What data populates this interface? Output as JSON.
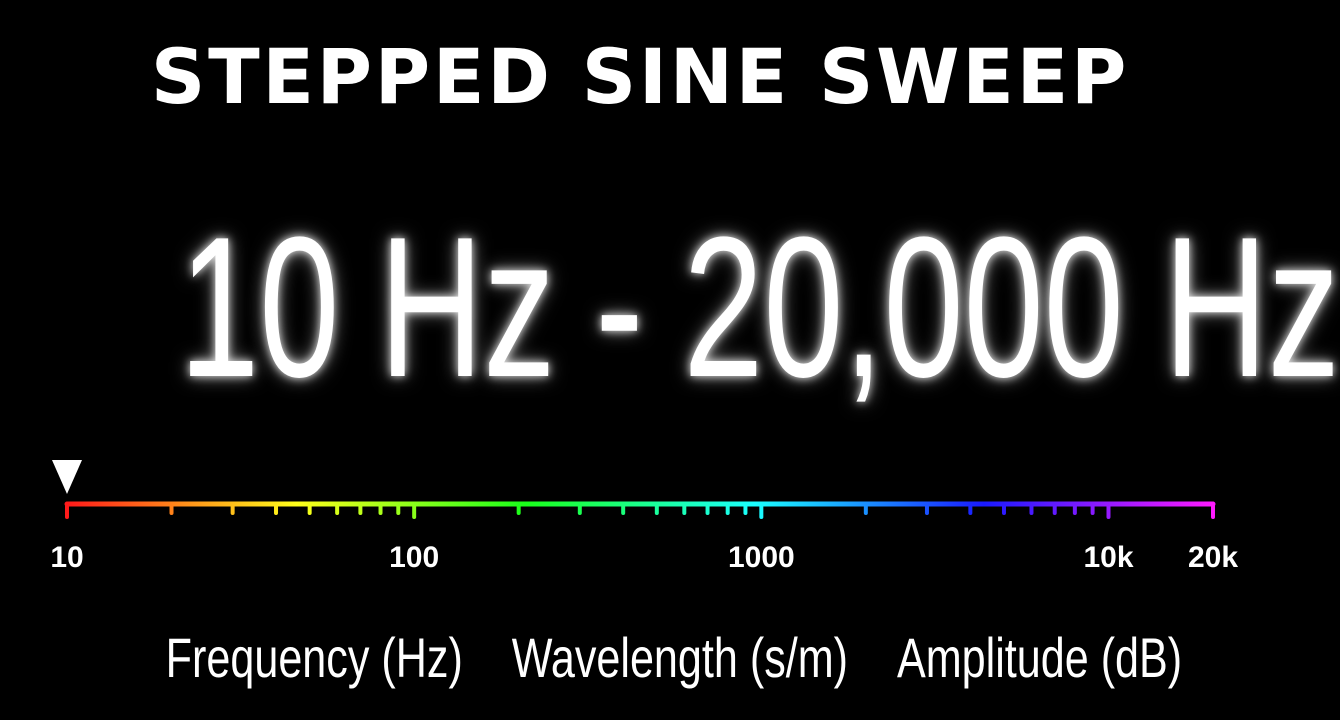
{
  "title": "Stepped Sine Sweep",
  "range": "10 Hz - 20,000 Hz",
  "scale": {
    "min_hz": 10,
    "max_hz": 20000,
    "current_hz": 10,
    "labels": [
      {
        "hz": 10,
        "text": "10"
      },
      {
        "hz": 100,
        "text": "100"
      },
      {
        "hz": 1000,
        "text": "1000"
      },
      {
        "hz": 10000,
        "text": "10k"
      },
      {
        "hz": 20000,
        "text": "20k"
      }
    ],
    "ticks": [
      10,
      20,
      30,
      40,
      50,
      60,
      70,
      80,
      90,
      100,
      200,
      300,
      400,
      500,
      600,
      700,
      800,
      900,
      1000,
      2000,
      3000,
      4000,
      5000,
      6000,
      7000,
      8000,
      9000,
      10000,
      20000
    ],
    "major_ticks": [
      10,
      100,
      1000,
      10000,
      20000
    ]
  },
  "footer": {
    "frequency": "Frequency (Hz)",
    "wavelength": "Wavelength (s/m)",
    "amplitude": "Amplitude (dB)"
  },
  "colors": {
    "background": "#000000",
    "text": "#ffffff",
    "spectrum_start": "#ff1a1a",
    "spectrum_end": "#ff33ff"
  }
}
